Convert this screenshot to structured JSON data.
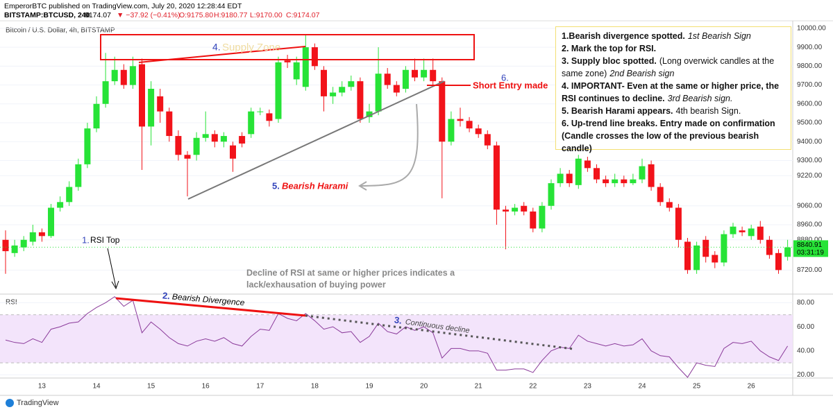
{
  "header": {
    "publisher": "EmperorBTC published on TradingView.com, July 20, 2020 12:28:44 EDT",
    "symbol": "BITSTAMP:BTCUSD, 240",
    "last": "9174.07",
    "change": "▼ −37.92 (−0.41%)",
    "open": "O:9175.80",
    "high": "H:9180.77",
    "low": "L:9170.00",
    "close": "C:9174.07"
  },
  "chart_data": [
    {
      "type": "candlestick",
      "title": "Bitcoin / U.S. Dollar, 4h, BITSTAMP",
      "up_color": "#27e337",
      "down_color": "#f2131a",
      "categories": [
        null,
        null,
        null,
        null,
        "13",
        null,
        null,
        null,
        null,
        null,
        "14",
        null,
        null,
        null,
        null,
        null,
        "15",
        null,
        null,
        null,
        null,
        null,
        "16",
        null,
        null,
        null,
        null,
        null,
        "17",
        null,
        null,
        null,
        null,
        null,
        "18",
        null,
        null,
        null,
        null,
        null,
        "19",
        null,
        null,
        null,
        null,
        null,
        "20",
        null,
        null,
        null,
        null,
        null,
        "21",
        null,
        null,
        null,
        null,
        null,
        "22",
        null,
        null,
        null,
        null,
        null,
        "23",
        null,
        null,
        null,
        null,
        null,
        "24",
        null,
        null,
        null,
        null,
        null,
        "25",
        null,
        null,
        null,
        null,
        null,
        "26",
        null,
        null,
        null,
        null
      ],
      "open": [
        8880,
        8810,
        8840,
        8870,
        8920,
        8900,
        9050,
        9080,
        9160,
        9280,
        9470,
        9600,
        9720,
        9780,
        9700,
        9810,
        9480,
        9640,
        9560,
        9430,
        9330,
        9330,
        9420,
        9440,
        9400,
        9380,
        9430,
        9440,
        9560,
        9550,
        9520,
        9830,
        9730,
        9690,
        9900,
        9780,
        9640,
        9660,
        9690,
        9720,
        9530,
        9560,
        9760,
        9700,
        9680,
        9780,
        9740,
        9780,
        9720,
        9400,
        9520,
        9510,
        9470,
        9440,
        9380,
        9040,
        9030,
        9060,
        9030,
        8940,
        9060,
        9180,
        9230,
        9170,
        9300,
        9260,
        9200,
        9180,
        9200,
        9180,
        9200,
        9280,
        9160,
        9080,
        9050,
        8870,
        8720,
        8880,
        8800,
        8760,
        8910,
        8930,
        8900,
        8950,
        8880,
        8810,
        8790
      ],
      "high": [
        8930,
        8880,
        8900,
        8960,
        8940,
        9070,
        9110,
        9190,
        9310,
        9500,
        9640,
        9870,
        9850,
        9810,
        9850,
        9840,
        9720,
        9680,
        9580,
        9460,
        9350,
        9450,
        9560,
        9460,
        9450,
        9400,
        9450,
        9580,
        9580,
        9570,
        9850,
        9860,
        9850,
        9970,
        9920,
        9800,
        9690,
        9720,
        9750,
        9740,
        9600,
        9900,
        9790,
        9720,
        9800,
        9840,
        9840,
        9840,
        9740,
        9560,
        9580,
        9530,
        9490,
        9460,
        9400,
        9060,
        9070,
        9080,
        9050,
        9080,
        9200,
        9260,
        9250,
        9330,
        9320,
        9280,
        9220,
        9230,
        9220,
        9230,
        9310,
        9300,
        9180,
        9100,
        9070,
        8890,
        8870,
        8900,
        8820,
        8930,
        8970,
        8950,
        8960,
        8980,
        8900,
        8830,
        8880
      ],
      "low": [
        8700,
        8790,
        8820,
        8850,
        8870,
        8890,
        9030,
        9060,
        9140,
        9260,
        9450,
        9580,
        9700,
        9680,
        9680,
        9250,
        9380,
        9500,
        9400,
        9300,
        9110,
        9300,
        9400,
        9370,
        9370,
        9240,
        9370,
        9420,
        9540,
        9480,
        9500,
        9790,
        9700,
        9670,
        9780,
        9560,
        9600,
        9640,
        9670,
        9500,
        9500,
        9540,
        9680,
        9640,
        9660,
        9720,
        9720,
        9700,
        9100,
        9380,
        9480,
        9450,
        9420,
        9360,
        8960,
        8830,
        9010,
        9010,
        8920,
        8920,
        9040,
        9160,
        9160,
        9150,
        9240,
        9180,
        9160,
        9160,
        9160,
        9170,
        9180,
        9140,
        9060,
        9030,
        8840,
        8700,
        8700,
        8760,
        8730,
        8740,
        8890,
        8900,
        8880,
        8860,
        8780,
        8700,
        8770
      ],
      "close": [
        8820,
        8850,
        8880,
        8920,
        8900,
        9050,
        9080,
        9160,
        9280,
        9470,
        9600,
        9720,
        9780,
        9700,
        9800,
        9480,
        9680,
        9560,
        9430,
        9330,
        9310,
        9420,
        9440,
        9400,
        9430,
        9310,
        9390,
        9560,
        9560,
        9510,
        9820,
        9820,
        9820,
        9900,
        9800,
        9640,
        9660,
        9690,
        9720,
        9520,
        9560,
        9760,
        9700,
        9660,
        9780,
        9740,
        9780,
        9720,
        9400,
        9520,
        9510,
        9470,
        9440,
        9380,
        9040,
        9030,
        9050,
        9030,
        8940,
        9060,
        9180,
        9230,
        9180,
        9310,
        9260,
        9200,
        9180,
        9200,
        9180,
        9200,
        9270,
        9160,
        9080,
        9050,
        8880,
        8720,
        8850,
        8790,
        8760,
        8910,
        8950,
        8920,
        8940,
        8880,
        8800,
        8720,
        8840
      ],
      "ylim": [
        8600,
        10040
      ],
      "yticks": [
        {
          "value": 10000,
          "label": "10000.00"
        },
        {
          "value": 9900,
          "label": "9900.00"
        },
        {
          "value": 9800,
          "label": "9800.00"
        },
        {
          "value": 9700,
          "label": "9700.00"
        },
        {
          "value": 9600,
          "label": "9600.00"
        },
        {
          "value": 9500,
          "label": "9500.00"
        },
        {
          "value": 9400,
          "label": "9400.00"
        },
        {
          "value": 9300,
          "label": "9300.00"
        },
        {
          "value": 9220,
          "label": "9220.00"
        },
        {
          "value": 9060,
          "label": "9060.00"
        },
        {
          "value": 8960,
          "label": "8960.00"
        },
        {
          "value": 8880,
          "label": "8880.00"
        },
        {
          "value": 8720,
          "label": "8720.00"
        }
      ],
      "last_price": 8840.91,
      "countdown": "03:31:19"
    },
    {
      "type": "line",
      "title": "RSI",
      "color": "#8a3a9a",
      "band": [
        30,
        70
      ],
      "band_color": "#f3e4fb",
      "values": [
        49,
        47,
        46,
        50,
        47,
        58,
        60,
        63,
        64,
        71,
        76,
        80,
        85,
        77,
        82,
        55,
        64,
        58,
        51,
        46,
        44,
        48,
        50,
        48,
        51,
        46,
        44,
        52,
        58,
        57,
        71,
        67,
        65,
        71,
        65,
        58,
        60,
        55,
        56,
        47,
        52,
        63,
        56,
        54,
        60,
        57,
        60,
        55,
        34,
        42,
        42,
        40,
        40,
        38,
        24,
        24,
        25,
        25,
        22,
        32,
        40,
        43,
        42,
        53,
        48,
        46,
        44,
        46,
        44,
        45,
        50,
        40,
        36,
        35,
        26,
        18,
        30,
        28,
        27,
        42,
        47,
        46,
        48,
        40,
        35,
        32,
        44
      ],
      "ylim": [
        18,
        86
      ],
      "yticks": [
        {
          "value": 80,
          "label": "80.00"
        },
        {
          "value": 60,
          "label": "60.00"
        },
        {
          "value": 40,
          "label": "40.00"
        },
        {
          "value": 20,
          "label": "20.00"
        }
      ]
    }
  ],
  "annotations": {
    "supply": "4.",
    "supply_name": "Supply Zone",
    "short": "Short Entry made",
    "six": "6.",
    "harami_num": "5.",
    "harami": "Bearish Harami",
    "rsi_top_num": "1.",
    "rsi_top": "RSI Top",
    "decline": "Decline of RSI at same or higher prices indicates a",
    "decline2": "lack/exhausation of buying power",
    "div_num": "2.",
    "div": "Bearish Divergence",
    "cont_num": "3.",
    "cont": "Continuous decline"
  },
  "notes": [
    [
      {
        "text": "1.Bearish divergence spotted.",
        "style": "bold"
      },
      {
        "text": "1st Bearish Sign",
        "style": "italic"
      }
    ],
    [
      {
        "text": "2. Mark the top for RSI.",
        "style": "bold"
      }
    ],
    [
      {
        "text": "3. Supply bloc spotted.",
        "style": "bold"
      },
      {
        "text": "(Long overwick candles at the same zone)",
        "style": "normal"
      },
      {
        "text": "2nd Bearish sign",
        "style": "italic"
      }
    ],
    [
      {
        "text": "4. IMPORTANT- Even at the same or higher price, the RSI continues to decline.",
        "style": "bold"
      },
      {
        "text": "3rd Bearish sign.",
        "style": "italic"
      }
    ],
    [
      {
        "text": "5. Bearish Harami appears.",
        "style": "bold"
      },
      {
        "text": "4th bearish Sign.",
        "style": "normal"
      }
    ],
    [
      {
        "text": "6. Up-trend line breaks. Entry made on confirmation (Candle crosses the low of the previous bearish candle)",
        "style": "bold"
      }
    ]
  ],
  "footer": "TradingView"
}
